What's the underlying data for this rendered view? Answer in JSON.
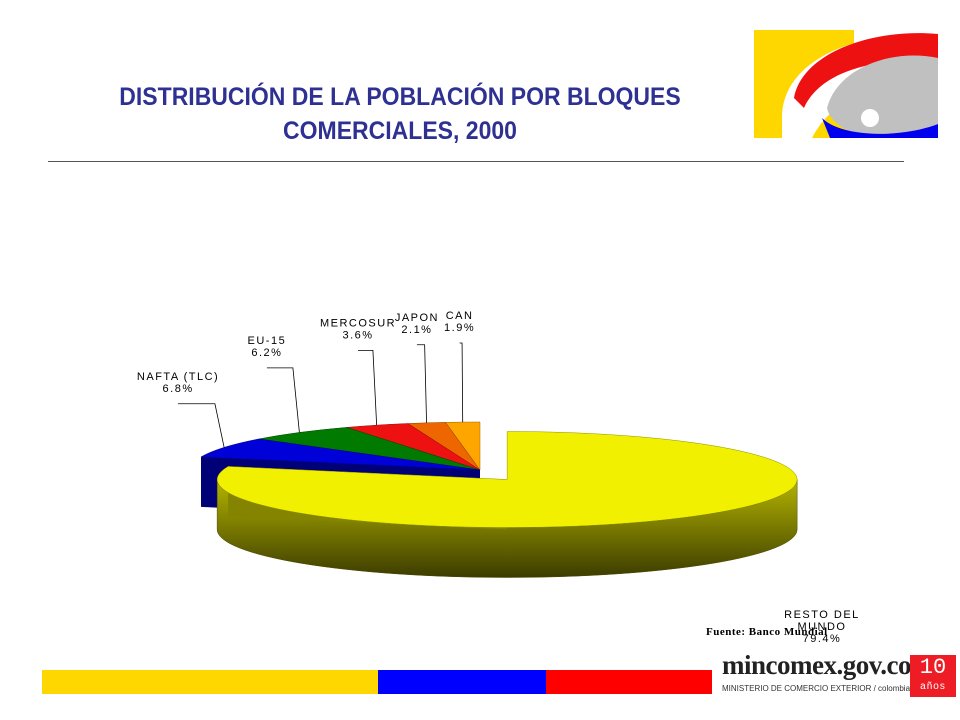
{
  "header": {
    "title_line1": "DISTRIBUCIÓN DE LA POBLACIÓN POR BLOQUES",
    "title_line2": "COMERCIALES, 2000"
  },
  "chart_data": {
    "type": "pie",
    "title": "DISTRIBUCIÓN DE LA POBLACIÓN POR BLOQUES COMERCIALES, 2000",
    "slices": [
      {
        "label": "RESTO DEL MUNDO",
        "value": 79.4,
        "value_label": "79.4%",
        "color": "#f0f000"
      },
      {
        "label": "NAFTA (TLC)",
        "value": 6.8,
        "value_label": "6.8%",
        "color": "#0000d8"
      },
      {
        "label": "EU-15",
        "value": 6.2,
        "value_label": "6.2%",
        "color": "#007a00"
      },
      {
        "label": "MERCOSUR",
        "value": 3.6,
        "value_label": "3.6%",
        "color": "#ee1111"
      },
      {
        "label": "JAPON",
        "value": 2.1,
        "value_label": "2.1%",
        "color": "#ee6600"
      },
      {
        "label": "CAN",
        "value": 1.9,
        "value_label": "1.9%",
        "color": "#ffa500"
      }
    ],
    "exploded": "RESTO DEL MUNDO",
    "style": "3d"
  },
  "source": "Fuente: Banco Mundial",
  "footer": {
    "brand": "mincomex.gov.co",
    "subtitle": "MINISTERIO DE COMERCIO EXTERIOR / colombia",
    "badge_number": "10",
    "badge_text": "años",
    "bar_colors": [
      "#ffd700",
      "#0000ff",
      "#ff0000"
    ]
  }
}
